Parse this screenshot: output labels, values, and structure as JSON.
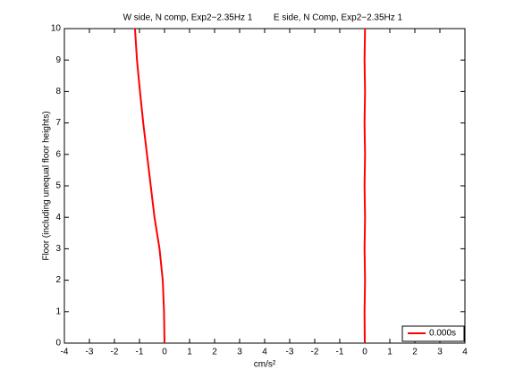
{
  "chart_data": {
    "type": "line",
    "titles": [
      "W side, N comp, Exp2−2.35Hz 1",
      "E side, N Comp, Exp2−2.35Hz 1"
    ],
    "x_label": "cm/s²",
    "y_label": "Floor (including unequal floor heights)",
    "series": [
      {
        "name": "0.000s",
        "color": "#ff0000",
        "x": [
          0,
          -0.02,
          -0.07,
          -0.2,
          -0.4,
          -0.55,
          -0.7,
          -0.85,
          -0.98,
          -1.1,
          -1.18
        ],
        "y": [
          0,
          1,
          2,
          3,
          4,
          5,
          6,
          7,
          8,
          9,
          10
        ]
      },
      {
        "color": "#ff0000",
        "x": [
          8,
          7.99,
          8.01,
          7.99,
          8.01,
          7.99,
          8.01,
          7.99,
          8.01,
          7.99,
          8.01
        ],
        "y": [
          0,
          1,
          2,
          3,
          4,
          5,
          6,
          7,
          8,
          9,
          10
        ]
      }
    ],
    "xlim": [
      -4,
      12
    ],
    "ylim": [
      0,
      10
    ],
    "xticks": [
      -4,
      -3,
      -2,
      -1,
      0,
      1,
      2,
      3,
      4,
      {
        "value": 5,
        "label": "-3"
      },
      {
        "value": 6,
        "label": "-2"
      },
      {
        "value": 7,
        "label": "-1"
      },
      {
        "value": 8,
        "label": "0"
      },
      {
        "value": 9,
        "label": "1"
      },
      {
        "value": 10,
        "label": "2"
      },
      {
        "value": 11,
        "label": "3"
      },
      {
        "value": 12,
        "label": "4"
      }
    ],
    "yticks": [
      0,
      1,
      2,
      3,
      4,
      5,
      6,
      7,
      8,
      9,
      10
    ],
    "legend": "lower right"
  }
}
